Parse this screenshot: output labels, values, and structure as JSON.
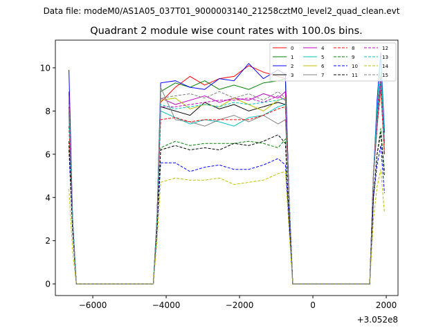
{
  "chart_data": {
    "type": "line",
    "suptitle": "Data file: modeM0/AS1A05_037T01_9000003140_21258cztM0_level2_quad_clean.evt",
    "title": "Quadrant 2 module wise count rates with 100.0s bins.",
    "xlabel": "",
    "ylabel": "",
    "x_offset_label": "+3.052e8",
    "xlim": [
      -7020,
      2320
    ],
    "ylim": [
      -0.54,
      11.28
    ],
    "xticks": [
      -6000,
      -4000,
      -2000,
      0,
      2000
    ],
    "xtick_labels": [
      "−6000",
      "−4000",
      "−2000",
      "0",
      "2000"
    ],
    "yticks": [
      0,
      2,
      4,
      6,
      8,
      10
    ],
    "ytick_labels": [
      "0",
      "2",
      "4",
      "6",
      "8",
      "10"
    ],
    "grid": false,
    "legend_position": "top-right",
    "x": [
      -6650,
      -6550,
      -6450,
      -4350,
      -4250,
      -4150,
      -3750,
      -3350,
      -2950,
      -2550,
      -2150,
      -1750,
      -1350,
      -950,
      -750,
      -650,
      -550,
      1550,
      1650,
      1750,
      1850,
      1950
    ],
    "series": [
      {
        "name": "0",
        "color": "#ff0000",
        "dash": false,
        "values": [
          8.5,
          3,
          0,
          0,
          3,
          8.4,
          9.1,
          9.6,
          9.2,
          9.5,
          9.6,
          10.1,
          9.8,
          9.6,
          9.5,
          4,
          0,
          0,
          5,
          8,
          9.6,
          7
        ]
      },
      {
        "name": "1",
        "color": "#008000",
        "dash": false,
        "values": [
          8.2,
          3,
          0,
          0,
          3,
          8.9,
          9.3,
          9.1,
          9.4,
          9.0,
          9.2,
          9.0,
          9.3,
          9.4,
          9.5,
          4,
          0,
          0,
          5,
          7.8,
          9.2,
          6.5
        ]
      },
      {
        "name": "2",
        "color": "#0000ff",
        "dash": false,
        "values": [
          9.9,
          3,
          0,
          0,
          3,
          9.3,
          9.4,
          9.1,
          9.0,
          9.5,
          9.4,
          10.2,
          9.5,
          9.9,
          9.7,
          4,
          0,
          0,
          5,
          8.5,
          10.7,
          7
        ]
      },
      {
        "name": "3",
        "color": "#000000",
        "dash": false,
        "values": [
          8.0,
          3,
          0,
          0,
          3,
          8.2,
          8.0,
          7.8,
          8.4,
          8.1,
          8.3,
          8.0,
          8.2,
          8.4,
          8.3,
          4,
          0,
          0,
          5,
          7.5,
          9.3,
          6
        ]
      },
      {
        "name": "4",
        "color": "#bf00bf",
        "dash": false,
        "values": [
          8.8,
          3,
          0,
          0,
          3,
          8.6,
          8.3,
          8.5,
          8.7,
          8.4,
          8.6,
          8.5,
          8.8,
          8.6,
          8.9,
          4,
          0,
          0,
          5,
          7.7,
          9.6,
          6.5
        ]
      },
      {
        "name": "5",
        "color": "#00bfbf",
        "dash": false,
        "values": [
          7.8,
          3,
          0,
          0,
          3,
          8.0,
          7.7,
          7.4,
          7.6,
          7.5,
          7.3,
          7.7,
          7.8,
          8.2,
          8.3,
          4,
          0,
          0,
          5,
          8.2,
          10.5,
          6.6
        ]
      },
      {
        "name": "6",
        "color": "#bfbf00",
        "dash": false,
        "values": [
          7.6,
          3,
          0,
          0,
          3,
          8.5,
          8.6,
          8.1,
          8.3,
          8.2,
          8.6,
          8.3,
          8.0,
          8.5,
          8.6,
          4,
          0,
          0,
          5,
          7.4,
          9.0,
          6.2
        ]
      },
      {
        "name": "7",
        "color": "#808080",
        "dash": false,
        "values": [
          7.9,
          3,
          0,
          0,
          3,
          9.1,
          7.6,
          7.5,
          7.3,
          7.6,
          7.8,
          7.5,
          7.8,
          7.4,
          7.6,
          4,
          0,
          0,
          5,
          7.2,
          9.3,
          6
        ]
      },
      {
        "name": "8",
        "color": "#ff0000",
        "dash": true,
        "values": [
          7.3,
          3,
          0,
          0,
          3,
          7.6,
          7.7,
          7.5,
          7.6,
          7.6,
          7.6,
          7.6,
          7.8,
          8.1,
          8.2,
          4,
          0,
          0,
          5,
          7.3,
          9.0,
          6
        ]
      },
      {
        "name": "9",
        "color": "#008000",
        "dash": true,
        "values": [
          6.4,
          2.5,
          0,
          0,
          2.5,
          6.3,
          6.6,
          6.4,
          6.5,
          6.5,
          6.5,
          6.6,
          6.5,
          6.3,
          6.7,
          3,
          0,
          0,
          4,
          6,
          7.2,
          5.2
        ]
      },
      {
        "name": "10",
        "color": "#0000ff",
        "dash": true,
        "values": [
          6.2,
          2.5,
          0,
          0,
          2.5,
          5.6,
          5.6,
          5.2,
          5.4,
          5.5,
          5.3,
          5.3,
          5.5,
          5.8,
          5.5,
          3,
          0,
          0,
          4,
          5.5,
          6.4,
          4.2
        ]
      },
      {
        "name": "11",
        "color": "#000000",
        "dash": true,
        "values": [
          6.6,
          2.5,
          0,
          0,
          2.5,
          6.2,
          6.4,
          6.2,
          6.3,
          6.2,
          6.5,
          6.4,
          6.6,
          6.9,
          6.5,
          3,
          0,
          0,
          4,
          6,
          7.0,
          5
        ]
      },
      {
        "name": "12",
        "color": "#bf00bf",
        "dash": true,
        "values": [
          8.9,
          3,
          0,
          0,
          3,
          8.2,
          8.2,
          8.3,
          8.4,
          8.5,
          8.5,
          8.6,
          8.4,
          8.7,
          8.5,
          4,
          0,
          0,
          5,
          7.5,
          9.3,
          6.5
        ]
      },
      {
        "name": "13",
        "color": "#00bfbf",
        "dash": true,
        "values": [
          8.0,
          3,
          0,
          0,
          3,
          8.3,
          8.1,
          8.2,
          8.3,
          8.2,
          8.4,
          8.3,
          8.4,
          8.5,
          8.6,
          4,
          0,
          0,
          5,
          7.8,
          9.8,
          6.5
        ]
      },
      {
        "name": "14",
        "color": "#bfbf00",
        "dash": true,
        "values": [
          4.4,
          1.5,
          0,
          0,
          2,
          4.7,
          4.9,
          4.8,
          4.8,
          4.9,
          4.6,
          4.7,
          4.8,
          5.1,
          5.2,
          2.5,
          0,
          0,
          3,
          4.5,
          5.3,
          3.3
        ]
      },
      {
        "name": "15",
        "color": "#808080",
        "dash": true,
        "values": [
          8.7,
          3,
          0,
          0,
          3,
          8.6,
          8.7,
          8.8,
          8.6,
          8.9,
          8.6,
          8.8,
          8.5,
          8.9,
          8.6,
          4,
          0,
          0,
          5,
          7.6,
          9.2,
          6.2
        ]
      }
    ]
  }
}
